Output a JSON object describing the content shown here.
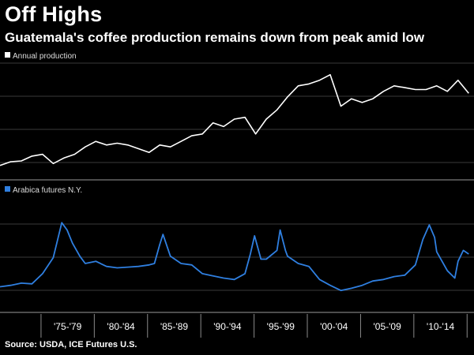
{
  "header": {
    "title": "Off Highs",
    "subtitle": "Guatemala's coffee production remains down from peak amid low"
  },
  "footer": {
    "source": "Source: USDA, ICE Futures U.S."
  },
  "colors": {
    "background": "#000000",
    "production_line": "#ffffff",
    "arabica_line": "#2f7fe0",
    "grid": "#3a3a3a"
  },
  "chart_data": [
    {
      "type": "line",
      "legend": "top-left",
      "grid": true,
      "x": [
        1971,
        1972,
        1973,
        1974,
        1975,
        1976,
        1977,
        1978,
        1979,
        1980,
        1981,
        1982,
        1983,
        1984,
        1985,
        1986,
        1987,
        1988,
        1989,
        1990,
        1991,
        1992,
        1993,
        1994,
        1995,
        1996,
        1997,
        1998,
        1999,
        2000,
        2001,
        2002,
        2003,
        2004,
        2005,
        2006,
        2007,
        2008,
        2009,
        2010,
        2011,
        2012,
        2013,
        2014,
        2015
      ],
      "series": [
        {
          "name": "Annual production",
          "values": [
            5,
            15,
            17,
            30,
            35,
            10,
            25,
            35,
            55,
            70,
            60,
            65,
            60,
            50,
            40,
            60,
            55,
            70,
            85,
            90,
            120,
            110,
            130,
            135,
            90,
            130,
            155,
            190,
            220,
            225,
            235,
            250,
            165,
            185,
            175,
            185,
            205,
            220,
            215,
            210,
            210,
            220,
            205,
            235,
            200
          ]
        }
      ],
      "ylim": [
        0,
        260
      ]
    },
    {
      "type": "line",
      "legend": "top-left",
      "grid": true,
      "x": [
        1971,
        1972,
        1973,
        1974,
        1975,
        1976,
        1976.8,
        1977.3,
        1977.8,
        1978.5,
        1979,
        1980,
        1981,
        1982,
        1983,
        1984,
        1985,
        1985.5,
        1986,
        1986.3,
        1987,
        1988,
        1989,
        1990,
        1991,
        1992,
        1993,
        1994,
        1994.5,
        1994.9,
        1995.5,
        1996,
        1997,
        1997.3,
        1997.8,
        1998,
        1999,
        2000,
        2001,
        2002,
        2003,
        2004,
        2005,
        2006,
        2007,
        2008,
        2009,
        2010,
        2010.7,
        2011.3,
        2011.8,
        2012,
        2013,
        2013.7,
        2014,
        2014.5,
        2015
      ],
      "series": [
        {
          "name": "Arabica futures N.Y.",
          "values": [
            20,
            22,
            25,
            24,
            38,
            60,
            108,
            98,
            80,
            62,
            52,
            55,
            48,
            46,
            47,
            48,
            50,
            52,
            78,
            92,
            62,
            52,
            50,
            38,
            35,
            32,
            30,
            38,
            65,
            90,
            58,
            58,
            70,
            98,
            70,
            62,
            52,
            48,
            30,
            22,
            15,
            18,
            22,
            28,
            30,
            34,
            36,
            50,
            85,
            105,
            88,
            68,
            42,
            32,
            55,
            70,
            65
          ]
        }
      ],
      "ylim": [
        0,
        130
      ]
    }
  ],
  "x_axis": {
    "tick_labels": [
      "'75-'79",
      "'80-'84",
      "'85-'89",
      "'90-'94",
      "'95-'99",
      "'00-'04",
      "'05-'09",
      "'10-'14"
    ]
  }
}
